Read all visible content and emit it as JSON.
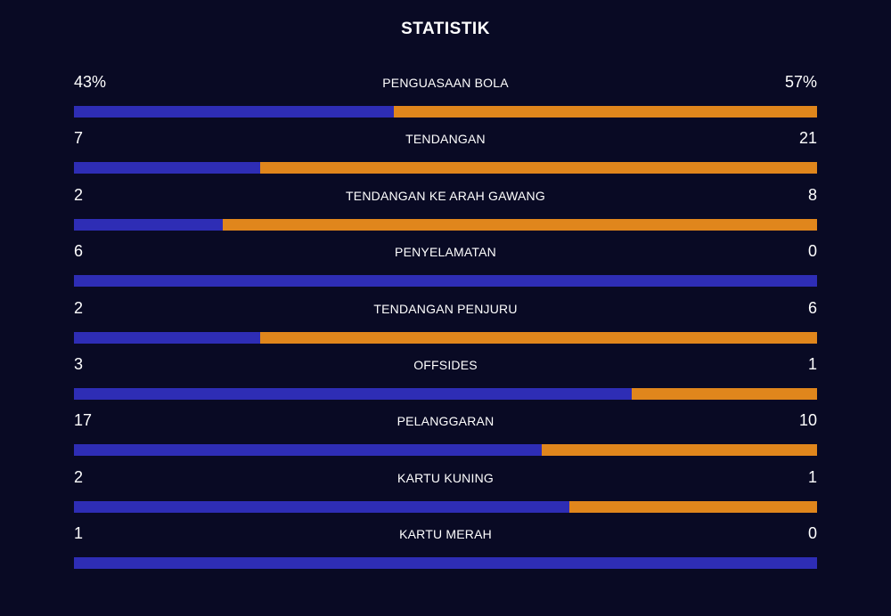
{
  "title": "STATISTIK",
  "colors": {
    "background": "#090A24",
    "home": "#2E2DB5",
    "away": "#E0861C",
    "text": "#FFFFFF"
  },
  "stats": [
    {
      "label": "PENGUASAAN BOLA",
      "home": "43%",
      "away": "57%",
      "home_share": 0.43
    },
    {
      "label": "TENDANGAN",
      "home": "7",
      "away": "21",
      "home_share": 0.25
    },
    {
      "label": "TENDANGAN KE ARAH GAWANG",
      "home": "2",
      "away": "8",
      "home_share": 0.2
    },
    {
      "label": "PENYELAMATAN",
      "home": "6",
      "away": "0",
      "home_share": 1.0
    },
    {
      "label": "TENDANGAN PENJURU",
      "home": "2",
      "away": "6",
      "home_share": 0.25
    },
    {
      "label": "OFFSIDES",
      "home": "3",
      "away": "1",
      "home_share": 0.75
    },
    {
      "label": "PELANGGARAN",
      "home": "17",
      "away": "10",
      "home_share": 0.63
    },
    {
      "label": "KARTU KUNING",
      "home": "2",
      "away": "1",
      "home_share": 0.667
    },
    {
      "label": "KARTU MERAH",
      "home": "1",
      "away": "0",
      "home_share": 1.0
    }
  ]
}
